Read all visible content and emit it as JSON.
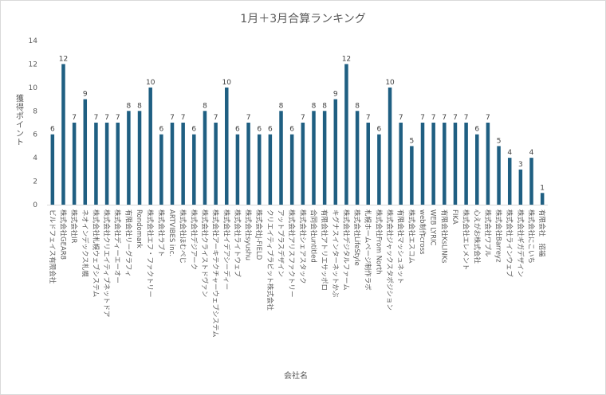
{
  "chart_data": {
    "type": "bar",
    "title": "1月＋3月合算ランキング",
    "xlabel": "会社名",
    "ylabel": "獲得ポイント",
    "ylim": [
      0,
      14
    ],
    "yticks": [
      0,
      2,
      4,
      6,
      8,
      10,
      12,
      14
    ],
    "grid": false,
    "legend": "none",
    "color": "#1f5f82",
    "categories": [
      "ビルドフェイス有限会社",
      "株式会社GEAR8",
      "株式会社IR",
      "ネオインデックス札幌",
      "株式会社札幌ウェブシステム",
      "株式会社クリエイティブネットドア",
      "株式会社ディーエーオー",
      "有限会社リーグラフィ",
      "Rondomark",
      "株式会社エフ・ファクトリー",
      "株式会社ラプト",
      "ARTVIBES inc.",
      "株式会社ほむぺじ",
      "株式会社デジアーク",
      "株式会社クライストドヴァン",
      "株式会社アーキテクチャーウェブシステム",
      "株式会社イデアシーディー",
      "株式会社ライトウェブ",
      "株式会社syushu",
      "株式会社J-FIELD",
      "クリエイティブラビット株式会社",
      "アットプラスデザイン",
      "株式会社アリスファクトリー",
      "株式会社シェアスタック",
      "合同会社untitled",
      "有限会社アトリエサッポロ",
      "キグナスインターネットかぶ",
      "株式会社デジタルファーム",
      "株式会社LifeStyle",
      "札幌ホームページ制作ラボ",
      "株式会社From North",
      "株式会社ジャックスタポジション",
      "有限会社マッシュネット",
      "株式会社エスコム",
      "web制作cross",
      "WEB LYRIC",
      "有限会社KsLINKs",
      "FIKA",
      "株式会社エレメント",
      "心えがお株式会社",
      "株式会社ワプル",
      "株式会社Barreyz",
      "株式会社ラインウェブ",
      "株式会社ギガデザイン",
      "株式会社にこいち",
      "有限会社　招福"
    ],
    "values": [
      6,
      12,
      7,
      9,
      7,
      7,
      7,
      8,
      8,
      10,
      6,
      7,
      7,
      6,
      8,
      7,
      10,
      6,
      7,
      6,
      6,
      8,
      6,
      7,
      8,
      8,
      9,
      12,
      8,
      7,
      6,
      10,
      7,
      5,
      7,
      7,
      7,
      7,
      7,
      6,
      7,
      5,
      4,
      3,
      4,
      1
    ]
  }
}
